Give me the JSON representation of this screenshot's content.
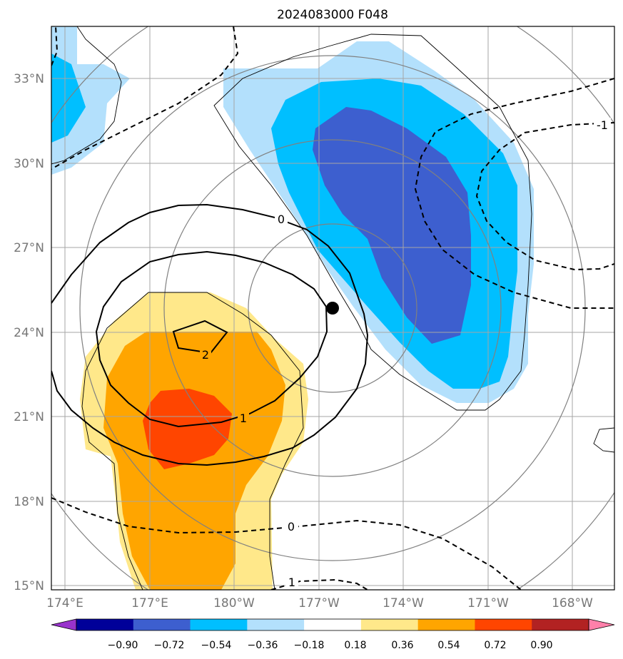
{
  "title": "2024083000 F048",
  "map": {
    "projection": "lat-lon",
    "lon_range": [
      "173.5°E",
      "166.5°W"
    ],
    "lat_range": [
      "14.8°N",
      "34.8°N"
    ],
    "lat_ticks": [
      "33°N",
      "30°N",
      "27°N",
      "24°N",
      "21°N",
      "18°N",
      "15°N"
    ],
    "lon_ticks": [
      "174°E",
      "177°E",
      "180°W",
      "177°W",
      "174°W",
      "171°W",
      "168°W"
    ],
    "gridlines": true,
    "storm_center": {
      "lat": 24.8,
      "lon": "176.8°W",
      "marker": "black-dot"
    }
  },
  "contours": {
    "black_solid_levels": [
      0,
      1,
      2
    ],
    "black_dashed_levels": [
      -1,
      0
    ],
    "labels": [
      "0",
      "1",
      "2",
      "-1",
      "0",
      "1"
    ],
    "gray_rings": true,
    "thin_black_outline": true
  },
  "colorbar": {
    "ticks": [
      "−0.90",
      "−0.72",
      "−0.54",
      "−0.36",
      "−0.18",
      "0.18",
      "0.36",
      "0.54",
      "0.72",
      "0.90"
    ],
    "colors": [
      "#9933cc",
      "#000099",
      "#3d5fcf",
      "#00bfff",
      "#b3e0fc",
      "#ffffff",
      "#ffe88a",
      "#ffa500",
      "#ff4500",
      "#b22222",
      "#ff80aa"
    ],
    "extend": "both"
  }
}
